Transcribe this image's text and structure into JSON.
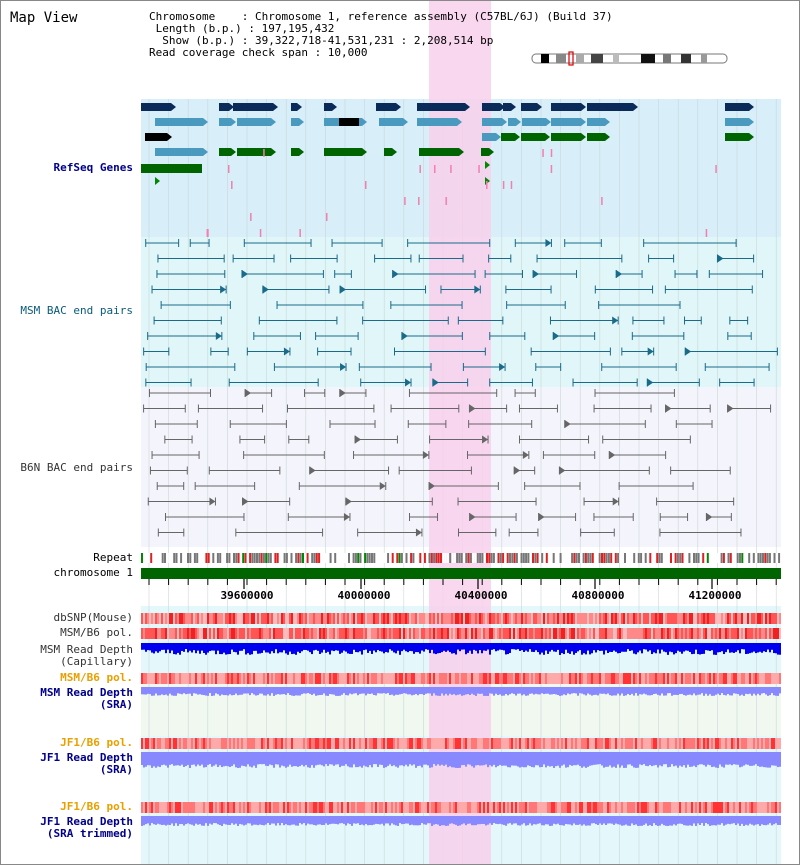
{
  "title": "Map View",
  "info": {
    "chromosome_label": "Chromosome    : Chromosome 1, reference assembly (C57BL/6J) (Build 37)",
    "length_label": " Length (b.p.) : 197,195,432",
    "show_label": "  Show (b.p.) : 39,322,718-41,531,231 : 2,208,514 bp",
    "coverage_label": "Read coverage check span : 10,000"
  },
  "tracks": {
    "refseq": "RefSeq Genes",
    "msm_bac": "MSM BAC end pairs",
    "b6n_bac": "B6N BAC end pairs",
    "repeat": "Repeat",
    "chromosome": "chromosome 1",
    "dbsnp": "dbSNP(Mouse)",
    "msm_b6_pol_1": "MSM/B6 pol.",
    "msm_read_depth_cap_1": "MSM Read Depth",
    "msm_read_depth_cap_2": "(Capillary)",
    "msm_b6_pol_2": "MSM/B6 pol.",
    "msm_read_depth_sra_1": "MSM Read Depth",
    "msm_read_depth_sra_2": "(SRA)",
    "jf1_b6_pol_1": "JF1/B6 pol.",
    "jf1_read_depth_sra_1": "JF1 Read Depth",
    "jf1_read_depth_sra_2": "(SRA)",
    "jf1_b6_pol_2": "JF1/B6 pol.",
    "jf1_read_depth_trim_1": "JF1 Read Depth",
    "jf1_read_depth_trim_2": "(SRA trimmed)"
  },
  "axis": {
    "ticks": [
      "39600000",
      "40000000",
      "40400000",
      "40800000",
      "41200000"
    ]
  },
  "colors": {
    "highlight": "#f8d0ec",
    "refseq_bg": "#d8eef8",
    "msm_bg": "#e0f6f8",
    "b6n_bg": "#f4f4fc",
    "depth_bg": "#f0f8f0",
    "chrom_bar": "#006400",
    "gene_dark": "#0a2a5a",
    "gene_light": "#4a9ac0",
    "gene_green": "#006400",
    "msm_line": "#1a6a8a",
    "b6n_line": "#666666",
    "depth_blue": "#0000ee",
    "depth_light": "#8888ff"
  }
}
